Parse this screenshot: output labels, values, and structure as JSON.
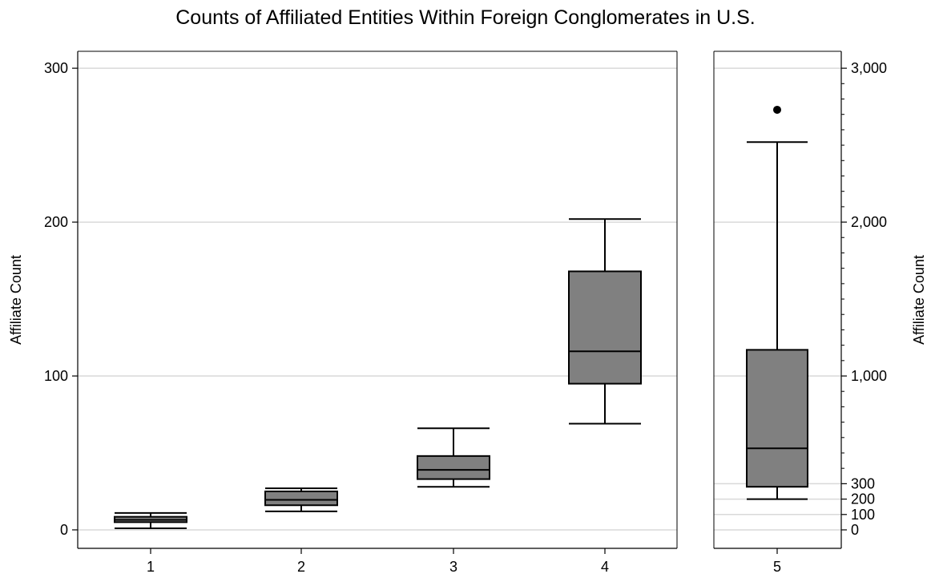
{
  "chart_data": {
    "type": "box",
    "title": "Counts of Affiliated Entities Within Foreign Conglomerates in U.S.",
    "left_panel": {
      "ylabel": "Affiliate Count",
      "ylim": [
        -12,
        311
      ],
      "yticks": [
        0,
        100,
        200,
        300
      ],
      "ytick_labels": [
        "0",
        "100",
        "200",
        "300"
      ],
      "grid": true,
      "boxes": [
        {
          "category": "1",
          "whisker_low": 1,
          "q1": 5,
          "median": 6.5,
          "q3": 8.5,
          "whisker_high": 11,
          "outliers": []
        },
        {
          "category": "2",
          "whisker_low": 12,
          "q1": 16,
          "median": 19.5,
          "q3": 25,
          "whisker_high": 27,
          "outliers": []
        },
        {
          "category": "3",
          "whisker_low": 28,
          "q1": 33,
          "median": 39,
          "q3": 48,
          "whisker_high": 66,
          "outliers": []
        },
        {
          "category": "4",
          "whisker_low": 69,
          "q1": 95,
          "median": 116,
          "q3": 168,
          "whisker_high": 202,
          "outliers": []
        }
      ]
    },
    "right_panel": {
      "ylabel": "Affiliate Count",
      "ylim": [
        -120,
        3110
      ],
      "yticks": [
        0,
        100,
        200,
        300,
        1000,
        2000,
        3000
      ],
      "ytick_labels": [
        "0",
        "100",
        "200",
        "300",
        "1,000",
        "2,000",
        "3,000"
      ],
      "grid": true,
      "boxes": [
        {
          "category": "5",
          "whisker_low": 200,
          "q1": 280,
          "median": 530,
          "q3": 1170,
          "whisker_high": 2520,
          "outliers": [
            2730
          ]
        }
      ]
    },
    "box_fill": "#808080",
    "grid_color": "#d9d9d9"
  }
}
